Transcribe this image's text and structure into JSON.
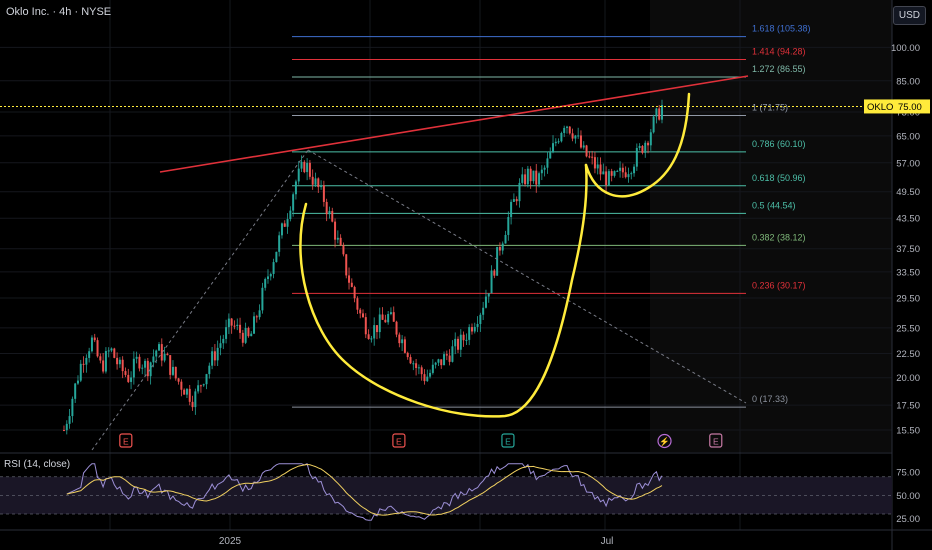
{
  "header": {
    "title": "Oklo Inc. · 4h · NYSE",
    "currency": "USD"
  },
  "last_price": {
    "symbol": "OKLO",
    "value": "75.00"
  },
  "rsi": {
    "label": "RSI (14, close)"
  },
  "colors": {
    "background": "#000000",
    "up": "#26a69a",
    "down": "#ef5350",
    "trendline": "#e0313a",
    "cup_handle": "#ffeb3b",
    "rsi_line": "#9c8fd6",
    "rsi_ma": "#f0d060",
    "price_label_bg": "#ffeb3b"
  },
  "chart_data": {
    "type": "candlestick",
    "y_scale": "log",
    "ylim": [
      14.2,
      120
    ],
    "price_ticks": [
      "100.00",
      "85.00",
      "73.00",
      "65.00",
      "57.00",
      "49.50",
      "43.50",
      "37.50",
      "33.50",
      "29.50",
      "25.50",
      "22.50",
      "20.00",
      "17.50",
      "15.50"
    ],
    "x_ticks": [
      "2025",
      "Jul"
    ],
    "fibonacci": [
      {
        "ratio": "1.618",
        "price": 105.38,
        "label": "1.618 (105.38)",
        "color": "#3f6fd0"
      },
      {
        "ratio": "1.414",
        "price": 94.28,
        "label": "1.414 (94.28)",
        "color": "#e0313a"
      },
      {
        "ratio": "1.272",
        "price": 86.55,
        "label": "1.272 (86.55)",
        "color": "#7fb8a8"
      },
      {
        "ratio": "1",
        "price": 71.75,
        "label": "1 (71.75)",
        "color": "#9098a6"
      },
      {
        "ratio": "0.786",
        "price": 60.1,
        "label": "0.786 (60.10)",
        "color": "#4dbfa8"
      },
      {
        "ratio": "0.618",
        "price": 50.96,
        "label": "0.618 (50.96)",
        "color": "#4dbfa8"
      },
      {
        "ratio": "0.5",
        "price": 44.54,
        "label": "0.5 (44.54)",
        "color": "#4dbfa8"
      },
      {
        "ratio": "0.382",
        "price": 38.12,
        "label": "0.382 (38.12)",
        "color": "#7fb87a"
      },
      {
        "ratio": "0.236",
        "price": 30.17,
        "label": "0.236 (30.17)",
        "color": "#e0313a"
      },
      {
        "ratio": "0",
        "price": 17.33,
        "label": "0 (17.33)",
        "color": "#8a909c"
      }
    ],
    "price_path": [
      [
        0,
        15.5
      ],
      [
        2,
        18.5
      ],
      [
        4,
        22
      ],
      [
        6,
        24
      ],
      [
        8,
        21
      ],
      [
        10,
        23
      ],
      [
        12,
        21
      ],
      [
        14,
        20
      ],
      [
        16,
        22
      ],
      [
        18,
        21
      ],
      [
        20,
        23
      ],
      [
        22,
        22
      ],
      [
        24,
        20
      ],
      [
        26,
        19
      ],
      [
        28,
        18
      ],
      [
        30,
        20
      ],
      [
        32,
        22
      ],
      [
        34,
        24
      ],
      [
        36,
        26
      ],
      [
        38,
        25
      ],
      [
        40,
        24
      ],
      [
        42,
        28
      ],
      [
        44,
        33
      ],
      [
        46,
        38
      ],
      [
        48,
        44
      ],
      [
        50,
        52
      ],
      [
        52,
        57
      ],
      [
        54,
        52
      ],
      [
        56,
        48
      ],
      [
        58,
        42
      ],
      [
        60,
        36
      ],
      [
        62,
        31
      ],
      [
        64,
        27
      ],
      [
        66,
        25
      ],
      [
        68,
        26
      ],
      [
        70,
        27
      ],
      [
        72,
        25
      ],
      [
        74,
        23
      ],
      [
        76,
        21
      ],
      [
        78,
        20
      ],
      [
        80,
        21
      ],
      [
        82,
        22
      ],
      [
        84,
        23
      ],
      [
        86,
        24
      ],
      [
        88,
        26
      ],
      [
        90,
        28
      ],
      [
        92,
        32
      ],
      [
        94,
        38
      ],
      [
        96,
        44
      ],
      [
        98,
        50
      ],
      [
        100,
        54
      ],
      [
        102,
        52
      ],
      [
        104,
        56
      ],
      [
        106,
        63
      ],
      [
        108,
        70
      ],
      [
        110,
        66
      ],
      [
        112,
        60
      ],
      [
        114,
        57
      ],
      [
        116,
        54
      ],
      [
        118,
        52
      ],
      [
        120,
        54
      ],
      [
        122,
        56
      ],
      [
        124,
        60
      ],
      [
        126,
        65
      ],
      [
        128,
        72
      ],
      [
        129,
        75
      ]
    ],
    "events": [
      {
        "label": "E",
        "type": "earnings",
        "color": "#ef5350",
        "x_fraction": 0.135
      },
      {
        "label": "E",
        "type": "earnings",
        "color": "#ef5350",
        "x_fraction": 0.428
      },
      {
        "label": "E",
        "type": "earnings",
        "color": "#26a69a",
        "x_fraction": 0.545
      },
      {
        "label": "⚡",
        "type": "dividend",
        "color": "#b86dd6",
        "x_fraction": 0.713
      },
      {
        "label": "E",
        "type": "earnings",
        "color": "#c77aa5",
        "x_fraction": 0.768
      }
    ],
    "rsi_ticks": [
      "75.00",
      "50.00",
      "25.00"
    ],
    "rsi_ylim": [
      15,
      88
    ],
    "rsi_levels": [
      70,
      50,
      30
    ]
  }
}
